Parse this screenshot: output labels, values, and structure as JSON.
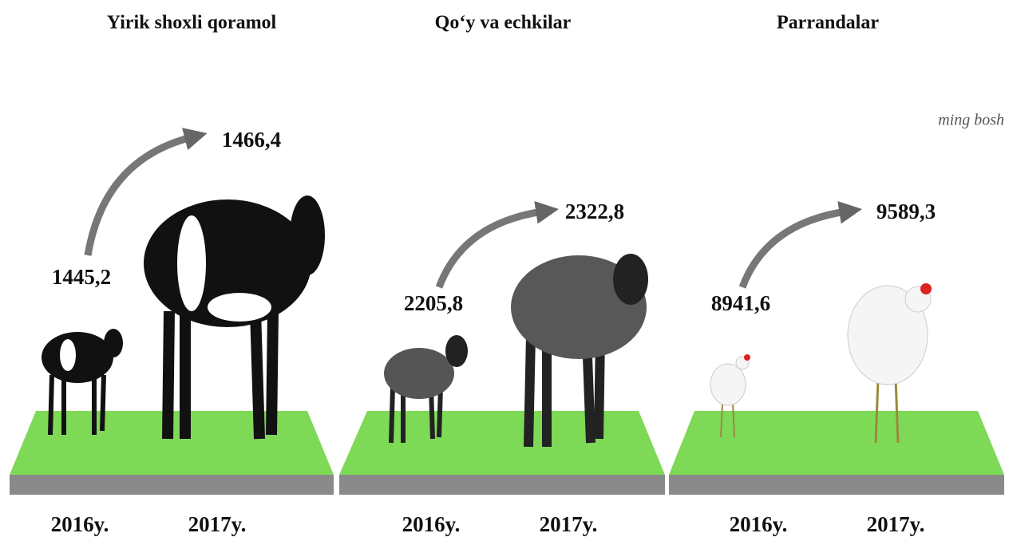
{
  "unit": "ming bosh",
  "groups": [
    {
      "title": "Yirik shoxli qoramol",
      "years": [
        "2016y.",
        "2017y."
      ],
      "values": [
        "1445,2",
        "1466,4"
      ]
    },
    {
      "title": "Qo‘y va echkilar",
      "years": [
        "2016y.",
        "2017y."
      ],
      "values": [
        "2205,8",
        "2322,8"
      ]
    },
    {
      "title": "Parrandalar",
      "years": [
        "2016y.",
        "2017y."
      ],
      "values": [
        "8941,6",
        "9589,3"
      ]
    }
  ]
}
